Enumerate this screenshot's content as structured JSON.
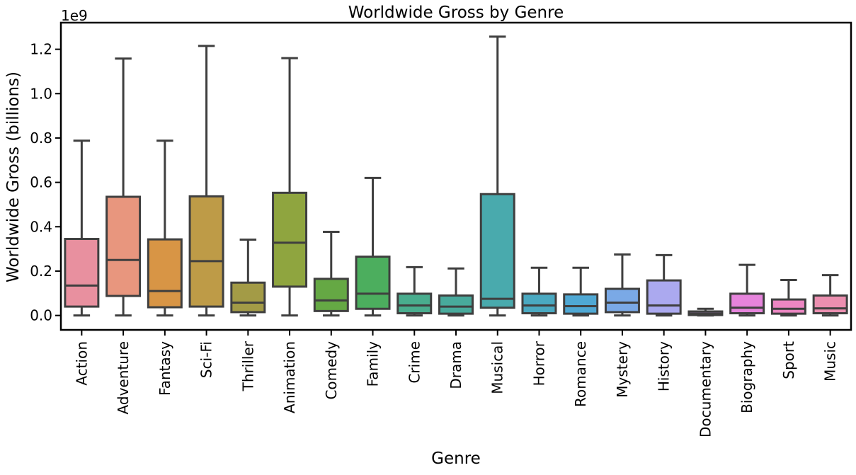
{
  "chart_data": {
    "type": "box",
    "title": "Worldwide Gross by Genre",
    "xlabel": "Genre",
    "ylabel": "Worldwide Gross (billions)",
    "y_offset_text": "1e9",
    "ylim": [
      -0.065,
      1.32
    ],
    "yticks": [
      0.0,
      0.2,
      0.4,
      0.6,
      0.8,
      1.0,
      1.2
    ],
    "ytick_labels": [
      "0.0",
      "0.2",
      "0.4",
      "0.6",
      "0.8",
      "1.0",
      "1.2"
    ],
    "grid": false,
    "categories": [
      "Action",
      "Adventure",
      "Fantasy",
      "Sci-Fi",
      "Thriller",
      "Animation",
      "Comedy",
      "Family",
      "Crime",
      "Drama",
      "Musical",
      "Horror",
      "Romance",
      "Mystery",
      "History",
      "Documentary",
      "Biography",
      "Sport",
      "Music"
    ],
    "boxes": [
      {
        "whisker_low": 0.0,
        "q1": 0.04,
        "median": 0.135,
        "q3": 0.345,
        "whisker_high": 0.788,
        "color": "#e8909f"
      },
      {
        "whisker_low": 0.0,
        "q1": 0.088,
        "median": 0.25,
        "q3": 0.535,
        "whisker_high": 1.158,
        "color": "#e8967e"
      },
      {
        "whisker_low": 0.0,
        "q1": 0.037,
        "median": 0.11,
        "q3": 0.343,
        "whisker_high": 0.788,
        "color": "#d89545"
      },
      {
        "whisker_low": 0.0,
        "q1": 0.04,
        "median": 0.245,
        "q3": 0.537,
        "whisker_high": 1.215,
        "color": "#be9b47"
      },
      {
        "whisker_low": 0.0,
        "q1": 0.015,
        "median": 0.058,
        "q3": 0.148,
        "whisker_high": 0.342,
        "color": "#a39b46"
      },
      {
        "whisker_low": 0.0,
        "q1": 0.13,
        "median": 0.328,
        "q3": 0.553,
        "whisker_high": 1.16,
        "color": "#8fa53f"
      },
      {
        "whisker_low": 0.0,
        "q1": 0.02,
        "median": 0.068,
        "q3": 0.165,
        "whisker_high": 0.377,
        "color": "#65a844"
      },
      {
        "whisker_low": 0.0,
        "q1": 0.03,
        "median": 0.098,
        "q3": 0.265,
        "whisker_high": 0.62,
        "color": "#4cae5e"
      },
      {
        "whisker_low": 0.0,
        "q1": 0.01,
        "median": 0.045,
        "q3": 0.098,
        "whisker_high": 0.218,
        "color": "#49ad8e"
      },
      {
        "whisker_low": 0.0,
        "q1": 0.008,
        "median": 0.04,
        "q3": 0.09,
        "whisker_high": 0.212,
        "color": "#48aa9c"
      },
      {
        "whisker_low": 0.0,
        "q1": 0.035,
        "median": 0.075,
        "q3": 0.547,
        "whisker_high": 1.257,
        "color": "#49aaad"
      },
      {
        "whisker_low": 0.0,
        "q1": 0.01,
        "median": 0.045,
        "q3": 0.098,
        "whisker_high": 0.215,
        "color": "#4aa9c1"
      },
      {
        "whisker_low": 0.0,
        "q1": 0.008,
        "median": 0.042,
        "q3": 0.095,
        "whisker_high": 0.215,
        "color": "#4fa8d4"
      },
      {
        "whisker_low": 0.0,
        "q1": 0.015,
        "median": 0.058,
        "q3": 0.12,
        "whisker_high": 0.275,
        "color": "#7aa9e6"
      },
      {
        "whisker_low": 0.0,
        "q1": 0.008,
        "median": 0.045,
        "q3": 0.158,
        "whisker_high": 0.272,
        "color": "#aba9ef"
      },
      {
        "whisker_low": 0.0,
        "q1": 0.002,
        "median": 0.008,
        "q3": 0.018,
        "whisker_high": 0.03,
        "color": "#cf98e6"
      },
      {
        "whisker_low": 0.0,
        "q1": 0.01,
        "median": 0.035,
        "q3": 0.098,
        "whisker_high": 0.228,
        "color": "#e684dc"
      },
      {
        "whisker_low": 0.0,
        "q1": 0.008,
        "median": 0.03,
        "q3": 0.072,
        "whisker_high": 0.16,
        "color": "#ec86c2"
      },
      {
        "whisker_low": 0.0,
        "q1": 0.01,
        "median": 0.032,
        "q3": 0.09,
        "whisker_high": 0.182,
        "color": "#ec8fb0"
      }
    ]
  }
}
